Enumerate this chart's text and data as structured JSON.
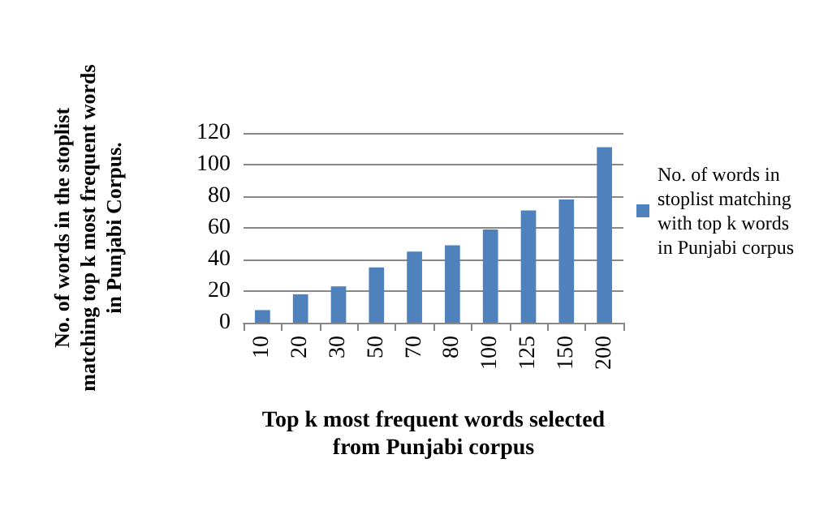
{
  "chart_data": {
    "type": "bar",
    "xlabel": "Top k most frequent words selected from Punjabi corpus",
    "ylabel": "No. of words in the stoplist matching top k most frequent words in Punjabi Corpus.",
    "categories": [
      "10",
      "20",
      "30",
      "50",
      "70",
      "80",
      "100",
      "125",
      "150",
      "200"
    ],
    "series": [
      {
        "name": "No. of words in stoplist matching with top k words in Punjabi corpus",
        "color": "#4f81bd",
        "values": [
          8,
          18,
          23,
          35,
          45,
          49,
          59,
          71,
          78,
          111
        ]
      }
    ],
    "ylim": [
      0,
      120
    ],
    "yticks": [
      0,
      20,
      40,
      60,
      80,
      100,
      120
    ],
    "grid": "y",
    "legend": "right"
  }
}
